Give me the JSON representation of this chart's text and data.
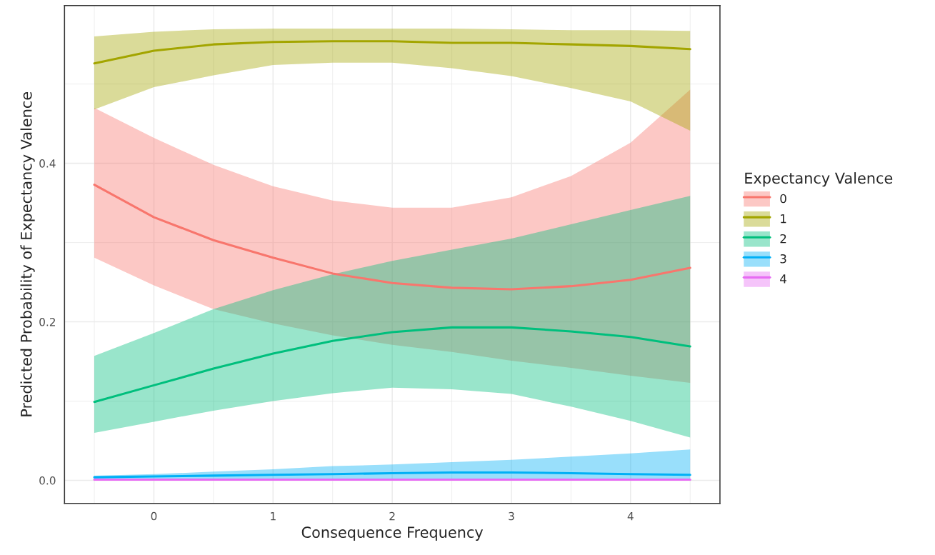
{
  "chart_data": {
    "type": "line",
    "xlabel": "Consequence Frequency",
    "ylabel": "Predicted Probability of Expectancy Valence",
    "legend_title": "Expectancy Valence",
    "legend": "right",
    "grid": true,
    "line_style": "solid",
    "marker": "none",
    "x": [
      -0.5,
      0,
      0.5,
      1,
      1.5,
      2,
      2.5,
      3,
      3.5,
      4,
      4.5
    ],
    "xlim": [
      -0.75,
      4.75
    ],
    "ylim": [
      -0.029,
      0.599
    ],
    "xticks": [
      {
        "value": -0.5,
        "label": null
      },
      0,
      {
        "value": 0.5,
        "label": null
      },
      1,
      {
        "value": 1.5,
        "label": null
      },
      2,
      {
        "value": 2.5,
        "label": null
      },
      3,
      {
        "value": 3.5,
        "label": null
      },
      4,
      {
        "value": 4.5,
        "label": null
      }
    ],
    "yticks": [
      {
        "value": 0,
        "label": "0.0"
      },
      {
        "value": 0.1,
        "label": null
      },
      0.2,
      {
        "value": 0.3,
        "label": null
      },
      0.4,
      {
        "value": 0.5,
        "label": null
      }
    ],
    "series": [
      {
        "name": "0",
        "color": "#f8766d",
        "values": [
          0.373,
          0.332,
          0.303,
          0.281,
          0.261,
          0.249,
          0.243,
          0.241,
          0.245,
          0.253,
          0.268
        ],
        "lower": [
          0.281,
          0.246,
          0.216,
          0.198,
          0.183,
          0.171,
          0.162,
          0.151,
          0.142,
          0.132,
          0.123
        ],
        "upper": [
          0.47,
          0.432,
          0.398,
          0.371,
          0.353,
          0.344,
          0.344,
          0.357,
          0.384,
          0.426,
          0.493
        ]
      },
      {
        "name": "1",
        "color": "#a3a500",
        "values": [
          0.526,
          0.542,
          0.55,
          0.553,
          0.554,
          0.554,
          0.552,
          0.552,
          0.55,
          0.548,
          0.544
        ],
        "lower": [
          0.468,
          0.496,
          0.511,
          0.524,
          0.527,
          0.527,
          0.52,
          0.51,
          0.495,
          0.478,
          0.441
        ],
        "upper": [
          0.56,
          0.566,
          0.569,
          0.57,
          0.57,
          0.57,
          0.57,
          0.569,
          0.568,
          0.568,
          0.567
        ]
      },
      {
        "name": "2",
        "color": "#00bf7d",
        "values": [
          0.099,
          0.12,
          0.141,
          0.16,
          0.176,
          0.187,
          0.193,
          0.193,
          0.188,
          0.181,
          0.169
        ],
        "lower": [
          0.06,
          0.074,
          0.088,
          0.1,
          0.11,
          0.117,
          0.115,
          0.109,
          0.093,
          0.075,
          0.054
        ],
        "upper": [
          0.157,
          0.186,
          0.216,
          0.24,
          0.26,
          0.277,
          0.291,
          0.305,
          0.323,
          0.341,
          0.359
        ]
      },
      {
        "name": "3",
        "color": "#00b0f6",
        "values": [
          0.004,
          0.005,
          0.006,
          0.007,
          0.008,
          0.009,
          0.01,
          0.01,
          0.009,
          0.008,
          0.007
        ],
        "lower": [
          0.002,
          0.002,
          0.002,
          0.002,
          0.002,
          0.002,
          0.002,
          0.002,
          0.002,
          0.002,
          0.002
        ],
        "upper": [
          0.006,
          0.008,
          0.011,
          0.014,
          0.018,
          0.02,
          0.023,
          0.026,
          0.03,
          0.034,
          0.039
        ]
      },
      {
        "name": "4",
        "color": "#e76bf3",
        "values": [
          0.001,
          0.001,
          0.001,
          0.001,
          0.001,
          0.001,
          0.001,
          0.001,
          0.001,
          0.001,
          0.001
        ]
      }
    ]
  }
}
